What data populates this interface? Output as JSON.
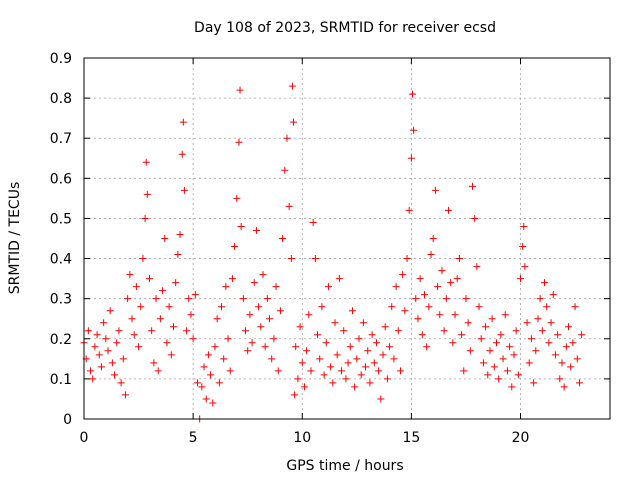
{
  "chart_data": {
    "type": "scatter",
    "title": "Day 108 of 2023, SRMTID for receiver ecsd",
    "xlabel": "GPS time / hours",
    "ylabel": "SRMTID / TECUs",
    "xlim": [
      0,
      24.1
    ],
    "ylim": [
      0,
      0.9
    ],
    "xticks": [
      0,
      5,
      10,
      15,
      20
    ],
    "xtick_labels": [
      "0",
      "5",
      "10",
      "15",
      "20"
    ],
    "yticks": [
      0,
      0.1,
      0.2,
      0.3,
      0.4,
      0.5,
      0.6,
      0.7,
      0.8,
      0.9
    ],
    "ytick_labels": [
      "0",
      "0.1",
      "0.2",
      "0.3",
      "0.4",
      "0.5",
      "0.6",
      "0.7",
      "0.8",
      "0.9"
    ],
    "grid": true,
    "marker": "plus",
    "color": "#ff0000",
    "series": [
      {
        "name": "SRMTID",
        "points": [
          [
            0.0,
            0.19
          ],
          [
            0.1,
            0.15
          ],
          [
            0.2,
            0.22
          ],
          [
            0.3,
            0.12
          ],
          [
            0.4,
            0.1
          ],
          [
            0.5,
            0.18
          ],
          [
            0.6,
            0.21
          ],
          [
            0.7,
            0.16
          ],
          [
            0.8,
            0.13
          ],
          [
            0.9,
            0.24
          ],
          [
            1.0,
            0.2
          ],
          [
            1.1,
            0.17
          ],
          [
            1.2,
            0.27
          ],
          [
            1.3,
            0.14
          ],
          [
            1.4,
            0.11
          ],
          [
            1.5,
            0.19
          ],
          [
            1.6,
            0.22
          ],
          [
            1.7,
            0.09
          ],
          [
            1.8,
            0.15
          ],
          [
            1.9,
            0.06
          ],
          [
            2.0,
            0.3
          ],
          [
            2.1,
            0.36
          ],
          [
            2.2,
            0.25
          ],
          [
            2.3,
            0.21
          ],
          [
            2.4,
            0.33
          ],
          [
            2.5,
            0.18
          ],
          [
            2.6,
            0.28
          ],
          [
            2.7,
            0.4
          ],
          [
            2.8,
            0.5
          ],
          [
            2.85,
            0.64
          ],
          [
            2.9,
            0.56
          ],
          [
            3.0,
            0.35
          ],
          [
            3.1,
            0.22
          ],
          [
            3.2,
            0.14
          ],
          [
            3.3,
            0.3
          ],
          [
            3.4,
            0.12
          ],
          [
            3.5,
            0.25
          ],
          [
            3.6,
            0.32
          ],
          [
            3.7,
            0.45
          ],
          [
            3.8,
            0.19
          ],
          [
            3.9,
            0.28
          ],
          [
            4.0,
            0.16
          ],
          [
            4.1,
            0.23
          ],
          [
            4.2,
            0.34
          ],
          [
            4.3,
            0.41
          ],
          [
            4.4,
            0.46
          ],
          [
            4.5,
            0.66
          ],
          [
            4.55,
            0.74
          ],
          [
            4.6,
            0.57
          ],
          [
            4.7,
            0.22
          ],
          [
            4.8,
            0.3
          ],
          [
            4.9,
            0.26
          ],
          [
            5.0,
            0.2
          ],
          [
            5.1,
            0.31
          ],
          [
            5.2,
            0.09
          ],
          [
            5.3,
            0.0
          ],
          [
            5.4,
            0.08
          ],
          [
            5.5,
            0.13
          ],
          [
            5.6,
            0.05
          ],
          [
            5.7,
            0.16
          ],
          [
            5.8,
            0.11
          ],
          [
            5.9,
            0.04
          ],
          [
            6.0,
            0.18
          ],
          [
            6.1,
            0.25
          ],
          [
            6.2,
            0.09
          ],
          [
            6.3,
            0.28
          ],
          [
            6.4,
            0.15
          ],
          [
            6.5,
            0.33
          ],
          [
            6.6,
            0.2
          ],
          [
            6.7,
            0.12
          ],
          [
            6.8,
            0.35
          ],
          [
            6.9,
            0.43
          ],
          [
            7.0,
            0.55
          ],
          [
            7.1,
            0.69
          ],
          [
            7.15,
            0.82
          ],
          [
            7.2,
            0.48
          ],
          [
            7.3,
            0.3
          ],
          [
            7.4,
            0.22
          ],
          [
            7.5,
            0.17
          ],
          [
            7.6,
            0.26
          ],
          [
            7.7,
            0.19
          ],
          [
            7.8,
            0.34
          ],
          [
            7.9,
            0.47
          ],
          [
            8.0,
            0.28
          ],
          [
            8.1,
            0.23
          ],
          [
            8.2,
            0.36
          ],
          [
            8.3,
            0.18
          ],
          [
            8.4,
            0.3
          ],
          [
            8.5,
            0.25
          ],
          [
            8.6,
            0.15
          ],
          [
            8.7,
            0.2
          ],
          [
            8.8,
            0.33
          ],
          [
            8.9,
            0.12
          ],
          [
            9.0,
            0.27
          ],
          [
            9.1,
            0.45
          ],
          [
            9.2,
            0.62
          ],
          [
            9.3,
            0.7
          ],
          [
            9.4,
            0.53
          ],
          [
            9.5,
            0.4
          ],
          [
            9.55,
            0.83
          ],
          [
            9.6,
            0.74
          ],
          [
            9.65,
            0.06
          ],
          [
            9.7,
            0.18
          ],
          [
            9.8,
            0.1
          ],
          [
            9.9,
            0.23
          ],
          [
            10.0,
            0.14
          ],
          [
            10.1,
            0.08
          ],
          [
            10.2,
            0.17
          ],
          [
            10.3,
            0.26
          ],
          [
            10.4,
            0.12
          ],
          [
            10.5,
            0.49
          ],
          [
            10.6,
            0.4
          ],
          [
            10.7,
            0.21
          ],
          [
            10.8,
            0.15
          ],
          [
            10.9,
            0.28
          ],
          [
            11.0,
            0.11
          ],
          [
            11.1,
            0.19
          ],
          [
            11.2,
            0.33
          ],
          [
            11.3,
            0.13
          ],
          [
            11.4,
            0.09
          ],
          [
            11.5,
            0.24
          ],
          [
            11.6,
            0.16
          ],
          [
            11.7,
            0.35
          ],
          [
            11.8,
            0.12
          ],
          [
            11.9,
            0.22
          ],
          [
            12.0,
            0.1
          ],
          [
            12.1,
            0.14
          ],
          [
            12.2,
            0.18
          ],
          [
            12.3,
            0.27
          ],
          [
            12.4,
            0.08
          ],
          [
            12.5,
            0.15
          ],
          [
            12.6,
            0.2
          ],
          [
            12.7,
            0.11
          ],
          [
            12.8,
            0.24
          ],
          [
            12.9,
            0.13
          ],
          [
            13.0,
            0.17
          ],
          [
            13.1,
            0.09
          ],
          [
            13.2,
            0.21
          ],
          [
            13.3,
            0.14
          ],
          [
            13.4,
            0.19
          ],
          [
            13.5,
            0.12
          ],
          [
            13.6,
            0.05
          ],
          [
            13.7,
            0.16
          ],
          [
            13.8,
            0.23
          ],
          [
            13.9,
            0.1
          ],
          [
            14.0,
            0.18
          ],
          [
            14.1,
            0.28
          ],
          [
            14.2,
            0.15
          ],
          [
            14.3,
            0.33
          ],
          [
            14.4,
            0.22
          ],
          [
            14.5,
            0.12
          ],
          [
            14.6,
            0.36
          ],
          [
            14.7,
            0.27
          ],
          [
            14.8,
            0.4
          ],
          [
            14.9,
            0.52
          ],
          [
            15.0,
            0.65
          ],
          [
            15.05,
            0.81
          ],
          [
            15.1,
            0.72
          ],
          [
            15.2,
            0.3
          ],
          [
            15.3,
            0.25
          ],
          [
            15.4,
            0.35
          ],
          [
            15.5,
            0.21
          ],
          [
            15.6,
            0.31
          ],
          [
            15.7,
            0.18
          ],
          [
            15.8,
            0.28
          ],
          [
            15.9,
            0.41
          ],
          [
            16.0,
            0.45
          ],
          [
            16.1,
            0.57
          ],
          [
            16.2,
            0.33
          ],
          [
            16.3,
            0.26
          ],
          [
            16.4,
            0.37
          ],
          [
            16.5,
            0.22
          ],
          [
            16.6,
            0.3
          ],
          [
            16.7,
            0.52
          ],
          [
            16.8,
            0.34
          ],
          [
            16.9,
            0.19
          ],
          [
            17.0,
            0.26
          ],
          [
            17.1,
            0.35
          ],
          [
            17.2,
            0.4
          ],
          [
            17.3,
            0.21
          ],
          [
            17.4,
            0.12
          ],
          [
            17.5,
            0.3
          ],
          [
            17.6,
            0.24
          ],
          [
            17.7,
            0.17
          ],
          [
            17.8,
            0.58
          ],
          [
            17.9,
            0.5
          ],
          [
            18.0,
            0.38
          ],
          [
            18.1,
            0.28
          ],
          [
            18.2,
            0.2
          ],
          [
            18.3,
            0.14
          ],
          [
            18.4,
            0.23
          ],
          [
            18.5,
            0.11
          ],
          [
            18.6,
            0.17
          ],
          [
            18.7,
            0.25
          ],
          [
            18.8,
            0.13
          ],
          [
            18.9,
            0.19
          ],
          [
            19.0,
            0.1
          ],
          [
            19.1,
            0.21
          ],
          [
            19.2,
            0.15
          ],
          [
            19.3,
            0.26
          ],
          [
            19.4,
            0.12
          ],
          [
            19.5,
            0.18
          ],
          [
            19.6,
            0.08
          ],
          [
            19.7,
            0.16
          ],
          [
            19.8,
            0.22
          ],
          [
            19.9,
            0.11
          ],
          [
            20.0,
            0.35
          ],
          [
            20.1,
            0.43
          ],
          [
            20.15,
            0.48
          ],
          [
            20.2,
            0.38
          ],
          [
            20.3,
            0.24
          ],
          [
            20.4,
            0.14
          ],
          [
            20.5,
            0.2
          ],
          [
            20.6,
            0.09
          ],
          [
            20.7,
            0.17
          ],
          [
            20.8,
            0.25
          ],
          [
            20.9,
            0.3
          ],
          [
            21.0,
            0.22
          ],
          [
            21.1,
            0.34
          ],
          [
            21.2,
            0.28
          ],
          [
            21.3,
            0.19
          ],
          [
            21.4,
            0.24
          ],
          [
            21.5,
            0.31
          ],
          [
            21.6,
            0.16
          ],
          [
            21.7,
            0.21
          ],
          [
            21.8,
            0.1
          ],
          [
            21.9,
            0.14
          ],
          [
            22.0,
            0.08
          ],
          [
            22.1,
            0.18
          ],
          [
            22.2,
            0.23
          ],
          [
            22.3,
            0.13
          ],
          [
            22.4,
            0.19
          ],
          [
            22.5,
            0.28
          ],
          [
            22.6,
            0.15
          ],
          [
            22.7,
            0.09
          ],
          [
            22.8,
            0.21
          ]
        ]
      }
    ]
  }
}
